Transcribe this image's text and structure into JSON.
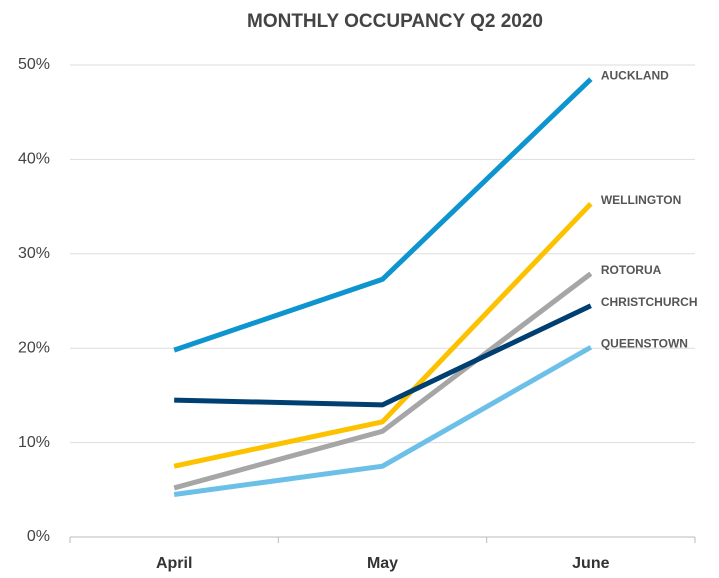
{
  "chart_data": {
    "type": "line",
    "title": "MONTHLY OCCUPANCY Q2 2020",
    "categories": [
      "April",
      "May",
      "June"
    ],
    "series": [
      {
        "name": "AUCKLAND",
        "color": "#0e95cf",
        "values": [
          19.8,
          27.3,
          48.5
        ]
      },
      {
        "name": "WELLINGTON",
        "color": "#fcc200",
        "values": [
          7.5,
          12.2,
          35.3
        ]
      },
      {
        "name": "ROTORUA",
        "color": "#a6a6a6",
        "values": [
          5.2,
          11.2,
          27.9
        ]
      },
      {
        "name": "CHRISTCHURCH",
        "color": "#003f72",
        "values": [
          14.5,
          14.0,
          24.5
        ]
      },
      {
        "name": "QUEENSTOWN",
        "color": "#6cc0e8",
        "values": [
          4.5,
          7.5,
          20.1
        ]
      }
    ],
    "ylim": [
      0,
      50
    ],
    "yticks": [
      {
        "value": 0,
        "label": "0%"
      },
      {
        "value": 10,
        "label": "10%"
      },
      {
        "value": 20,
        "label": "20%"
      },
      {
        "value": 30,
        "label": "30%"
      },
      {
        "value": 40,
        "label": "40%"
      },
      {
        "value": 50,
        "label": "50%"
      }
    ],
    "grid": true
  }
}
